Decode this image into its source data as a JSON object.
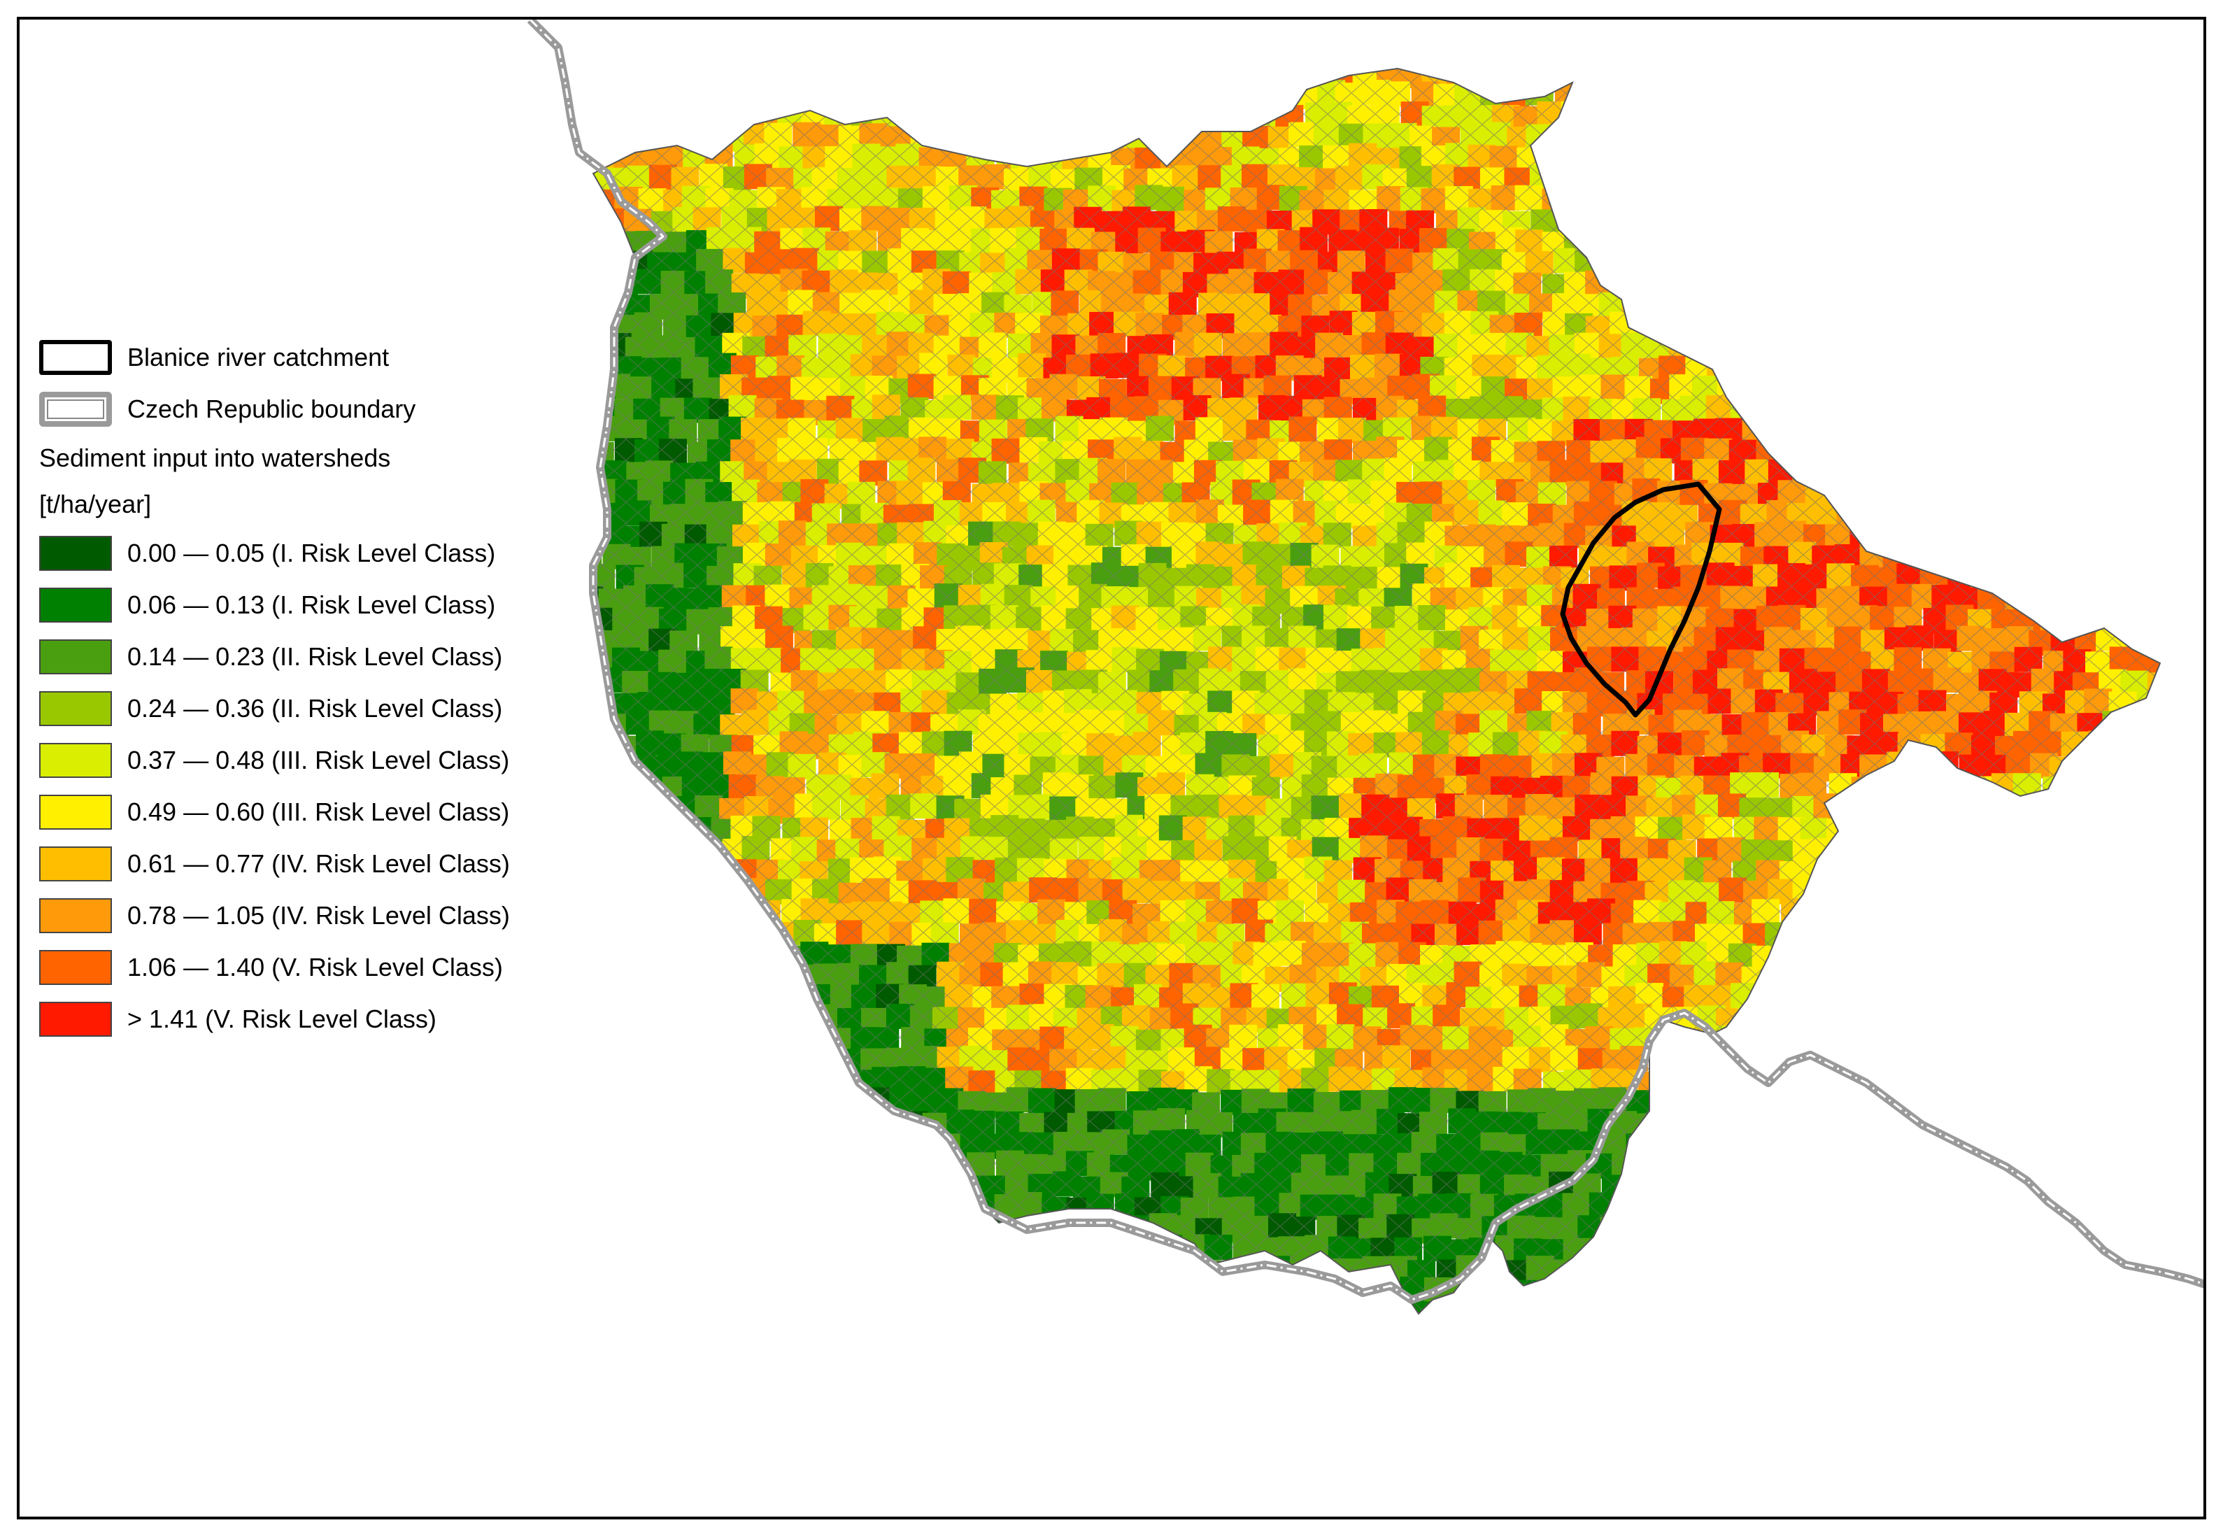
{
  "legend": {
    "catchment_label": "Blanice river catchment",
    "boundary_label": "Czech Republic boundary",
    "heading_line1": "Sediment input into watersheds",
    "heading_line2": "[t/ha/year]",
    "classes": [
      {
        "label": "0.00 — 0.05 (I. Risk Level Class)",
        "color": "#005a00"
      },
      {
        "label": "0.06 — 0.13 (I. Risk Level Class)",
        "color": "#008000"
      },
      {
        "label": "0.14 — 0.23 (II. Risk Level Class)",
        "color": "#4a9f10"
      },
      {
        "label": "0.24 — 0.36 (II. Risk Level Class)",
        "color": "#9ac800"
      },
      {
        "label": "0.37 — 0.48 (III. Risk Level Class)",
        "color": "#d9ee00"
      },
      {
        "label": "0.49 — 0.60 (III. Risk Level Class)",
        "color": "#fff000"
      },
      {
        "label": "0.61 — 0.77 (IV. Risk Level Class)",
        "color": "#ffbf00"
      },
      {
        "label": "0.78 — 1.05 (IV. Risk Level Class)",
        "color": "#ff9a0a"
      },
      {
        "label": "1.06 — 1.40 (V. Risk Level Class)",
        "color": "#ff6400"
      },
      {
        "label": "> 1.41 (V. Risk Level Class)",
        "color": "#ff1a00"
      }
    ]
  }
}
